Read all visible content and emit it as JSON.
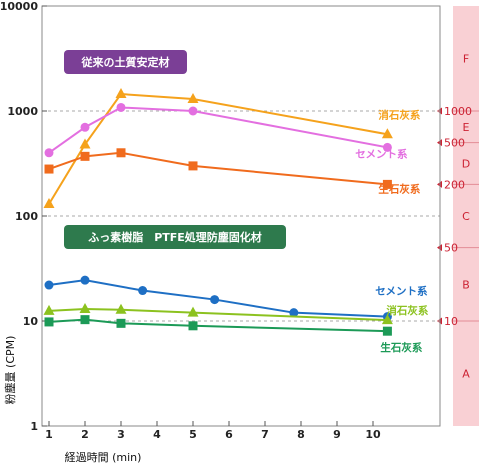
{
  "chart_data": {
    "type": "line",
    "xlabel": "経過時間 (min)",
    "ylabel": "粉塵量 (CPM)",
    "xlim": [
      1,
      11
    ],
    "ylim": [
      1,
      10000
    ],
    "y_scale": "log",
    "x_ticks": [
      "1",
      "2",
      "3",
      "4",
      "5",
      "6",
      "7",
      "8",
      "9",
      "10"
    ],
    "y_ticks": [
      "1",
      "10",
      "100",
      "1000",
      "10000"
    ],
    "grid": "dashed horizontal at 10, 100, 1000",
    "group_labels": {
      "conventional": "従来の土質安定材",
      "ptfe": "ふっ素樹脂　PTFE処理防塵固化材"
    },
    "series": [
      {
        "name": "消石灰系",
        "group": "conventional",
        "color": "#f5a21c",
        "marker": "triangle",
        "x": [
          1,
          2,
          3,
          5,
          10.4
        ],
        "y": [
          130,
          480,
          1450,
          1300,
          600
        ]
      },
      {
        "name": "セメント系",
        "group": "conventional",
        "color": "#e36fe0",
        "marker": "circle",
        "x": [
          1,
          2,
          3,
          5,
          10.4
        ],
        "y": [
          400,
          700,
          1080,
          1000,
          450
        ]
      },
      {
        "name": "生石灰系",
        "group": "conventional",
        "color": "#f06b1d",
        "marker": "square",
        "x": [
          1,
          2,
          3,
          5,
          10.4
        ],
        "y": [
          280,
          370,
          400,
          300,
          200
        ]
      },
      {
        "name": "セメント系",
        "group": "ptfe",
        "color": "#1e6fc4",
        "marker": "circle",
        "x": [
          1,
          2,
          3.6,
          5.6,
          7.8,
          10.4
        ],
        "y": [
          22,
          24.5,
          19.5,
          16,
          12,
          11
        ]
      },
      {
        "name": "消石灰系",
        "group": "ptfe",
        "color": "#8cc21f",
        "marker": "triangle",
        "x": [
          1,
          2,
          3,
          5,
          10.4
        ],
        "y": [
          12.5,
          13,
          12.8,
          12,
          10.2
        ]
      },
      {
        "name": "生石灰系",
        "group": "ptfe",
        "color": "#1c9a57",
        "marker": "square",
        "x": [
          1,
          2,
          3,
          5,
          10.4
        ],
        "y": [
          9.8,
          10.3,
          9.5,
          9,
          8
        ]
      }
    ],
    "zones": [
      {
        "label": "A",
        "from": 1,
        "to": 10
      },
      {
        "label": "B",
        "from": 10,
        "to": 50
      },
      {
        "label": "C",
        "from": 50,
        "to": 200
      },
      {
        "label": "D",
        "from": 200,
        "to": 500
      },
      {
        "label": "E",
        "from": 500,
        "to": 1000
      },
      {
        "label": "F",
        "from": 1000,
        "to": 10000
      }
    ],
    "zone_boundaries": [
      {
        "label": "10",
        "value": 10
      },
      {
        "label": "50",
        "value": 50
      },
      {
        "label": "200",
        "value": 200
      },
      {
        "label": "500",
        "value": 500
      },
      {
        "label": "1000",
        "value": 1000
      }
    ]
  },
  "colors": {
    "conventional_band": "#7b3f96",
    "ptfe_band": "#2e7a4d",
    "zone_fill": "#f9d0d4",
    "zone_text": "#cc2233",
    "grid": "#aaaaaa"
  }
}
